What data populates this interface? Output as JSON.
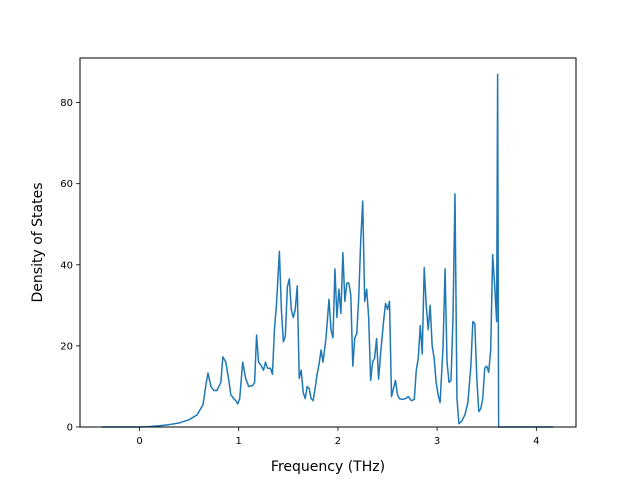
{
  "chart_data": {
    "type": "line",
    "title": "",
    "xlabel": "Frequency (THz)",
    "ylabel": "Density of States",
    "xlim": [
      -0.6,
      4.4
    ],
    "ylim": [
      0,
      91
    ],
    "xticks": [
      0,
      1,
      2,
      3,
      4
    ],
    "yticks": [
      0,
      20,
      40,
      60,
      80
    ],
    "xtick_labels": [
      "0",
      "1",
      "2",
      "3",
      "4"
    ],
    "ytick_labels": [
      "0",
      "20",
      "40",
      "60",
      "80"
    ],
    "grid": false,
    "legend": "none",
    "series": [
      {
        "color": "#1f77b4",
        "points": [
          [
            -0.38,
            0
          ],
          [
            0.0,
            0.0
          ],
          [
            0.1,
            0.1
          ],
          [
            0.2,
            0.3
          ],
          [
            0.3,
            0.6
          ],
          [
            0.4,
            1.0
          ],
          [
            0.5,
            1.8
          ],
          [
            0.58,
            3.0
          ],
          [
            0.64,
            5.5
          ],
          [
            0.67,
            10.5
          ],
          [
            0.69,
            13.3
          ],
          [
            0.72,
            10.0
          ],
          [
            0.75,
            9.0
          ],
          [
            0.78,
            9.0
          ],
          [
            0.8,
            10.0
          ],
          [
            0.82,
            11.0
          ],
          [
            0.84,
            17.3
          ],
          [
            0.87,
            16.0
          ],
          [
            0.9,
            11.5
          ],
          [
            0.92,
            8.0
          ],
          [
            0.95,
            7.0
          ],
          [
            0.97,
            6.5
          ],
          [
            0.99,
            5.7
          ],
          [
            1.01,
            7.0
          ],
          [
            1.04,
            16.0
          ],
          [
            1.07,
            12.0
          ],
          [
            1.1,
            10.0
          ],
          [
            1.14,
            10.2
          ],
          [
            1.16,
            11.0
          ],
          [
            1.18,
            22.7
          ],
          [
            1.2,
            16.0
          ],
          [
            1.23,
            15.0
          ],
          [
            1.25,
            14.0
          ],
          [
            1.27,
            16.0
          ],
          [
            1.29,
            14.5
          ],
          [
            1.32,
            14.5
          ],
          [
            1.34,
            13.0
          ],
          [
            1.36,
            24.0
          ],
          [
            1.38,
            30.0
          ],
          [
            1.41,
            43.3
          ],
          [
            1.43,
            29.0
          ],
          [
            1.45,
            21.0
          ],
          [
            1.47,
            22.5
          ],
          [
            1.49,
            34.5
          ],
          [
            1.51,
            36.5
          ],
          [
            1.53,
            29.0
          ],
          [
            1.55,
            27.0
          ],
          [
            1.57,
            29.0
          ],
          [
            1.59,
            34.8
          ],
          [
            1.61,
            12.0
          ],
          [
            1.63,
            14.0
          ],
          [
            1.65,
            8.5
          ],
          [
            1.67,
            7.0
          ],
          [
            1.69,
            10.0
          ],
          [
            1.71,
            9.5
          ],
          [
            1.73,
            7.0
          ],
          [
            1.75,
            6.5
          ],
          [
            1.77,
            9.5
          ],
          [
            1.79,
            13.0
          ],
          [
            1.81,
            15.5
          ],
          [
            1.83,
            19.0
          ],
          [
            1.85,
            16.0
          ],
          [
            1.88,
            22.0
          ],
          [
            1.91,
            31.5
          ],
          [
            1.93,
            24.0
          ],
          [
            1.95,
            22.0
          ],
          [
            1.97,
            39.0
          ],
          [
            1.99,
            27.0
          ],
          [
            2.01,
            34.0
          ],
          [
            2.03,
            28.0
          ],
          [
            2.05,
            43.0
          ],
          [
            2.07,
            31.0
          ],
          [
            2.09,
            35.5
          ],
          [
            2.11,
            35.5
          ],
          [
            2.13,
            32.5
          ],
          [
            2.15,
            15.0
          ],
          [
            2.17,
            22.0
          ],
          [
            2.19,
            23.0
          ],
          [
            2.21,
            32.0
          ],
          [
            2.23,
            46.0
          ],
          [
            2.25,
            55.7
          ],
          [
            2.27,
            31.0
          ],
          [
            2.29,
            34.0
          ],
          [
            2.31,
            27.0
          ],
          [
            2.33,
            11.5
          ],
          [
            2.35,
            16.0
          ],
          [
            2.37,
            17.0
          ],
          [
            2.39,
            21.8
          ],
          [
            2.41,
            11.8
          ],
          [
            2.43,
            18.0
          ],
          [
            2.46,
            26.0
          ],
          [
            2.48,
            30.5
          ],
          [
            2.5,
            29.0
          ],
          [
            2.52,
            31.0
          ],
          [
            2.54,
            7.5
          ],
          [
            2.56,
            9.5
          ],
          [
            2.58,
            11.5
          ],
          [
            2.6,
            8.0
          ],
          [
            2.62,
            7.0
          ],
          [
            2.65,
            6.8
          ],
          [
            2.68,
            7.0
          ],
          [
            2.71,
            7.5
          ],
          [
            2.74,
            6.5
          ],
          [
            2.77,
            6.8
          ],
          [
            2.79,
            14.0
          ],
          [
            2.81,
            17.0
          ],
          [
            2.83,
            25.0
          ],
          [
            2.85,
            18.0
          ],
          [
            2.87,
            39.3
          ],
          [
            2.89,
            30.0
          ],
          [
            2.91,
            24.0
          ],
          [
            2.93,
            30.0
          ],
          [
            2.95,
            20.0
          ],
          [
            2.97,
            17.0
          ],
          [
            2.99,
            11.0
          ],
          [
            3.01,
            8.0
          ],
          [
            3.03,
            6.0
          ],
          [
            3.06,
            20.0
          ],
          [
            3.08,
            39.0
          ],
          [
            3.1,
            16.0
          ],
          [
            3.12,
            11.0
          ],
          [
            3.14,
            11.5
          ],
          [
            3.16,
            27.0
          ],
          [
            3.18,
            57.5
          ],
          [
            3.2,
            7.0
          ],
          [
            3.22,
            0.8
          ],
          [
            3.25,
            1.5
          ],
          [
            3.28,
            3.0
          ],
          [
            3.31,
            6.0
          ],
          [
            3.34,
            15.0
          ],
          [
            3.36,
            26.0
          ],
          [
            3.38,
            25.5
          ],
          [
            3.4,
            12.0
          ],
          [
            3.42,
            3.8
          ],
          [
            3.44,
            4.5
          ],
          [
            3.46,
            7.0
          ],
          [
            3.48,
            14.5
          ],
          [
            3.5,
            15.0
          ],
          [
            3.52,
            13.5
          ],
          [
            3.54,
            19.0
          ],
          [
            3.56,
            42.5
          ],
          [
            3.58,
            35.0
          ],
          [
            3.6,
            26.0
          ],
          [
            3.61,
            87.0
          ],
          [
            3.62,
            0.0
          ],
          [
            4.17,
            0.0
          ]
        ]
      }
    ]
  }
}
